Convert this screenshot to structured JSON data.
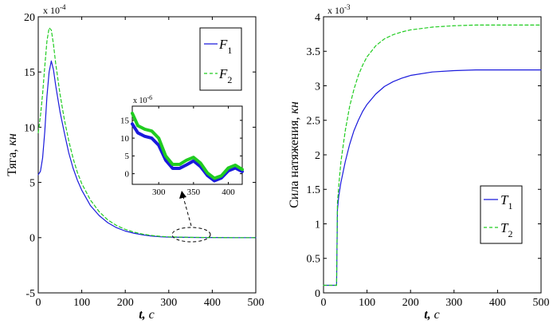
{
  "chart_data": [
    {
      "id": "left",
      "type": "line",
      "ylabel": "Тяга,",
      "ylabel_unit": "кн",
      "xlabel": "t,",
      "xlabel_unit": "c",
      "exponent": "x 10",
      "exponent_power": "-4",
      "xlim": [
        0,
        500
      ],
      "ylim": [
        -5,
        20
      ],
      "xticks": [
        "0",
        "100",
        "200",
        "300",
        "400",
        "500"
      ],
      "yticks": [
        "-5",
        "0",
        "5",
        "10",
        "15",
        "20"
      ],
      "legend_position": "top-right",
      "series": [
        {
          "name": "F",
          "sub": "1",
          "color": "#1a1adc",
          "style": "solid",
          "x": [
            0,
            5,
            10,
            15,
            20,
            25,
            30,
            35,
            40,
            50,
            60,
            70,
            80,
            90,
            100,
            120,
            140,
            160,
            180,
            200,
            220,
            240,
            260,
            280,
            300,
            350,
            400,
            450,
            500
          ],
          "y": [
            5.7,
            6.0,
            7.2,
            9.6,
            12.8,
            15.0,
            16.0,
            15.2,
            13.8,
            11.4,
            9.5,
            7.7,
            6.3,
            5.2,
            4.3,
            2.9,
            2.0,
            1.35,
            0.9,
            0.6,
            0.4,
            0.25,
            0.15,
            0.08,
            0.05,
            0.02,
            0.01,
            0.0,
            0.0
          ]
        },
        {
          "name": "F",
          "sub": "2",
          "color": "#20cc20",
          "style": "dashed",
          "x": [
            0,
            5,
            10,
            15,
            20,
            25,
            30,
            35,
            40,
            50,
            60,
            70,
            80,
            90,
            100,
            120,
            140,
            160,
            180,
            200,
            220,
            240,
            260,
            280,
            300,
            350,
            400,
            450,
            500
          ],
          "y": [
            9.5,
            11.0,
            13.0,
            15.5,
            17.8,
            19.0,
            18.8,
            17.5,
            15.8,
            13.0,
            10.7,
            8.8,
            7.2,
            5.9,
            4.9,
            3.4,
            2.35,
            1.6,
            1.1,
            0.75,
            0.5,
            0.32,
            0.2,
            0.12,
            0.07,
            0.03,
            0.01,
            0.0,
            0.0
          ]
        }
      ],
      "inset": {
        "exponent": "x 10",
        "exponent_power": "-6",
        "xlim": [
          262,
          420
        ],
        "ylim": [
          -3,
          19
        ],
        "xticks": [
          "300",
          "350",
          "400"
        ],
        "yticks": [
          "0",
          "5",
          "10",
          "15"
        ],
        "series": [
          {
            "name": "F1",
            "color": "#1a1adc",
            "x": [
              262,
              270,
              280,
              290,
              300,
              310,
              320,
              330,
              340,
              350,
              360,
              370,
              380,
              390,
              400,
              410,
              420
            ],
            "y": [
              14.0,
              11.5,
              10.5,
              10.0,
              8.0,
              3.8,
              1.5,
              1.5,
              2.5,
              3.6,
              2.0,
              -0.5,
              -2.0,
              -1.2,
              0.8,
              1.6,
              0.6
            ]
          },
          {
            "name": "F2",
            "color": "#20cc20",
            "x": [
              262,
              270,
              280,
              290,
              300,
              310,
              320,
              330,
              340,
              350,
              360,
              370,
              380,
              390,
              400,
              410,
              420
            ],
            "y": [
              17.0,
              13.5,
              12.5,
              12.0,
              10.0,
              5.0,
              2.6,
              2.6,
              3.8,
              4.6,
              3.0,
              0.2,
              -1.3,
              -0.6,
              1.6,
              2.4,
              1.2
            ]
          }
        ]
      }
    },
    {
      "id": "right",
      "type": "line",
      "ylabel": "Сила натяжения,",
      "ylabel_unit": "кн",
      "xlabel": "t,",
      "xlabel_unit": "c",
      "exponent": "x 10",
      "exponent_power": "-3",
      "xlim": [
        0,
        500
      ],
      "ylim": [
        0,
        4
      ],
      "xticks": [
        "0",
        "100",
        "200",
        "300",
        "400",
        "500"
      ],
      "yticks": [
        "0",
        "0.5",
        "1",
        "1.5",
        "2",
        "2.5",
        "3",
        "3.5",
        "4"
      ],
      "legend_position": "bottom-right",
      "series": [
        {
          "name": "T",
          "sub": "1",
          "color": "#1a1adc",
          "style": "solid",
          "x": [
            0,
            30,
            32,
            35,
            40,
            50,
            60,
            70,
            80,
            90,
            100,
            120,
            140,
            160,
            180,
            200,
            250,
            300,
            350,
            400,
            450,
            500
          ],
          "y": [
            0.11,
            0.11,
            1.2,
            1.4,
            1.6,
            1.9,
            2.15,
            2.35,
            2.5,
            2.63,
            2.73,
            2.88,
            2.99,
            3.06,
            3.11,
            3.15,
            3.2,
            3.22,
            3.23,
            3.23,
            3.23,
            3.23
          ]
        },
        {
          "name": "T",
          "sub": "2",
          "color": "#20cc20",
          "style": "dashed",
          "x": [
            0,
            30,
            32,
            35,
            40,
            50,
            60,
            70,
            80,
            90,
            100,
            120,
            140,
            160,
            180,
            200,
            250,
            300,
            350,
            400,
            450,
            500
          ],
          "y": [
            0.11,
            0.11,
            1.3,
            1.55,
            1.9,
            2.35,
            2.7,
            2.95,
            3.15,
            3.3,
            3.42,
            3.58,
            3.68,
            3.74,
            3.78,
            3.81,
            3.85,
            3.87,
            3.88,
            3.88,
            3.88,
            3.88
          ]
        }
      ]
    }
  ]
}
